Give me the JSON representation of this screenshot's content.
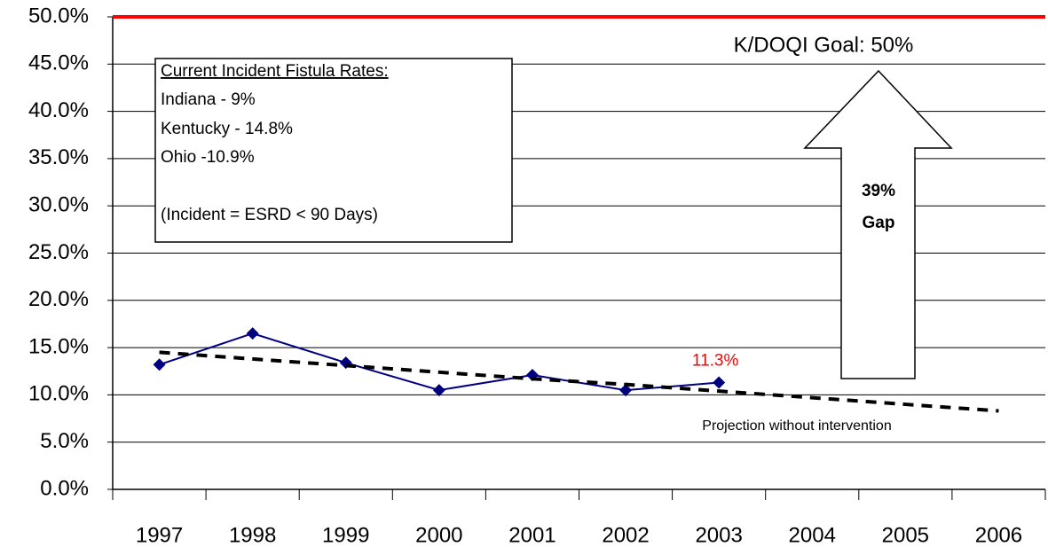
{
  "chart_data": {
    "type": "line",
    "categories": [
      "1997",
      "1998",
      "1999",
      "2000",
      "2001",
      "2002",
      "2003",
      "2004",
      "2005",
      "2006"
    ],
    "series": [
      {
        "color": "#000080",
        "values": [
          13.2,
          16.5,
          13.4,
          10.5,
          12.1,
          10.5,
          11.3,
          null,
          null,
          null
        ],
        "value_labels": [
          null,
          null,
          null,
          null,
          null,
          null,
          "11.3%",
          null,
          null,
          null
        ],
        "value_label_color": "#ff0000"
      },
      {
        "color": "#000000",
        "dashed": true,
        "values": [
          14.5,
          13.8,
          13.1,
          12.4,
          11.7,
          11.1,
          10.4,
          9.7,
          9.0,
          8.3
        ]
      }
    ],
    "goal_line": {
      "value": 50,
      "color": "#ff0000"
    },
    "ylim": [
      0,
      50
    ],
    "yticks": [
      {
        "value": 0,
        "label": "0.0%"
      },
      {
        "value": 5,
        "label": "5.0%"
      },
      {
        "value": 10,
        "label": "10.0%"
      },
      {
        "value": 15,
        "label": "15.0%"
      },
      {
        "value": 20,
        "label": "20.0%"
      },
      {
        "value": 25,
        "label": "25.0%"
      },
      {
        "value": 30,
        "label": "30.0%"
      },
      {
        "value": 35,
        "label": "35.0%"
      },
      {
        "value": 40,
        "label": "40.0%"
      },
      {
        "value": 45,
        "label": "45.0%"
      },
      {
        "value": 50,
        "label": "50.0%"
      }
    ],
    "grid": true,
    "annotations": {
      "goal": "K/DOQI Goal: 50%",
      "projection": "Projection without intervention",
      "gap": [
        "39%",
        "Gap"
      ],
      "box": [
        "Current Incident Fistula Rates:",
        "Indiana - 9%",
        "Kentucky - 14.8%",
        "Ohio -10.9%",
        "(Incident = ESRD < 90 Days)"
      ]
    }
  }
}
